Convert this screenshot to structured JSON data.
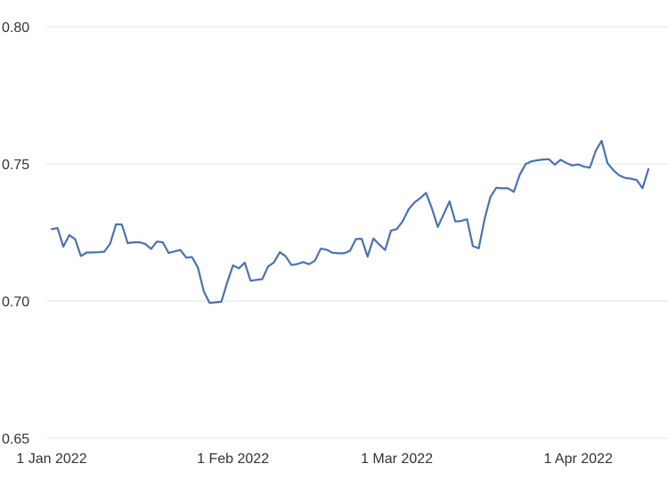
{
  "chart_data": {
    "type": "line",
    "title": "",
    "xlabel": "",
    "ylabel": "",
    "grid": "horizontal",
    "legend": "none",
    "xlim": [
      "2022-01-01",
      "2022-04-13"
    ],
    "ylim": [
      0.65,
      0.8
    ],
    "y_ticks": [
      {
        "value": 0.65,
        "label": "0.65"
      },
      {
        "value": 0.7,
        "label": "0.70"
      },
      {
        "value": 0.75,
        "label": "0.75"
      },
      {
        "value": 0.8,
        "label": "0.80"
      }
    ],
    "x_ticks": [
      {
        "value": "2022-01-01",
        "label": "1 Jan 2022"
      },
      {
        "value": "2022-02-01",
        "label": "1 Feb 2022"
      },
      {
        "value": "2022-03-01",
        "label": "1 Mar 2022"
      },
      {
        "value": "2022-04-01",
        "label": "1 Apr 2022"
      }
    ],
    "colors": {
      "line": "#4a72b0",
      "grid": "#e6e6e6",
      "text": "#333333"
    },
    "series": [
      {
        "x": [
          "2022-01-01",
          "2022-01-02",
          "2022-01-03",
          "2022-01-04",
          "2022-01-05",
          "2022-01-06",
          "2022-01-07",
          "2022-01-08",
          "2022-01-09",
          "2022-01-10",
          "2022-01-11",
          "2022-01-12",
          "2022-01-13",
          "2022-01-14",
          "2022-01-15",
          "2022-01-16",
          "2022-01-17",
          "2022-01-18",
          "2022-01-19",
          "2022-01-20",
          "2022-01-21",
          "2022-01-22",
          "2022-01-23",
          "2022-01-24",
          "2022-01-25",
          "2022-01-26",
          "2022-01-27",
          "2022-01-28",
          "2022-01-29",
          "2022-01-30",
          "2022-01-31",
          "2022-02-01",
          "2022-02-02",
          "2022-02-03",
          "2022-02-04",
          "2022-02-05",
          "2022-02-06",
          "2022-02-07",
          "2022-02-08",
          "2022-02-09",
          "2022-02-10",
          "2022-02-11",
          "2022-02-12",
          "2022-02-13",
          "2022-02-14",
          "2022-02-15",
          "2022-02-16",
          "2022-02-17",
          "2022-02-18",
          "2022-02-19",
          "2022-02-20",
          "2022-02-21",
          "2022-02-22",
          "2022-02-23",
          "2022-02-24",
          "2022-02-25",
          "2022-02-26",
          "2022-02-27",
          "2022-02-28",
          "2022-03-01",
          "2022-03-02",
          "2022-03-03",
          "2022-03-04",
          "2022-03-05",
          "2022-03-06",
          "2022-03-07",
          "2022-03-08",
          "2022-03-09",
          "2022-03-10",
          "2022-03-11",
          "2022-03-12",
          "2022-03-13",
          "2022-03-14",
          "2022-03-15",
          "2022-03-16",
          "2022-03-17",
          "2022-03-18",
          "2022-03-19",
          "2022-03-20",
          "2022-03-21",
          "2022-03-22",
          "2022-03-23",
          "2022-03-24",
          "2022-03-25",
          "2022-03-26",
          "2022-03-27",
          "2022-03-28",
          "2022-03-29",
          "2022-03-30",
          "2022-03-31",
          "2022-04-01",
          "2022-04-02",
          "2022-04-03",
          "2022-04-04",
          "2022-04-05",
          "2022-04-06",
          "2022-04-07",
          "2022-04-08",
          "2022-04-09",
          "2022-04-10",
          "2022-04-11",
          "2022-04-12",
          "2022-04-13"
        ],
        "values": [
          0.7262,
          0.7266,
          0.7198,
          0.724,
          0.7226,
          0.7164,
          0.7177,
          0.7177,
          0.7178,
          0.718,
          0.7209,
          0.728,
          0.7279,
          0.7211,
          0.7214,
          0.7214,
          0.7208,
          0.719,
          0.7217,
          0.7214,
          0.7175,
          0.7181,
          0.7186,
          0.7158,
          0.716,
          0.7122,
          0.7035,
          0.6993,
          0.6995,
          0.6997,
          0.7068,
          0.713,
          0.7119,
          0.714,
          0.7074,
          0.7077,
          0.708,
          0.7126,
          0.7141,
          0.7178,
          0.7163,
          0.7131,
          0.7135,
          0.7142,
          0.7134,
          0.7147,
          0.7191,
          0.7187,
          0.7176,
          0.7174,
          0.7174,
          0.7183,
          0.7226,
          0.7227,
          0.7162,
          0.7228,
          0.7206,
          0.7186,
          0.7257,
          0.7262,
          0.7291,
          0.7334,
          0.7359,
          0.7375,
          0.7394,
          0.7337,
          0.727,
          0.7316,
          0.7363,
          0.729,
          0.7292,
          0.7298,
          0.72,
          0.7192,
          0.7299,
          0.7379,
          0.7413,
          0.7411,
          0.7411,
          0.7398,
          0.746,
          0.7499,
          0.7509,
          0.7513,
          0.7516,
          0.7517,
          0.7497,
          0.7515,
          0.7503,
          0.7494,
          0.7498,
          0.749,
          0.7486,
          0.7548,
          0.7584,
          0.7503,
          0.7477,
          0.7458,
          0.7449,
          0.7446,
          0.7441,
          0.7411,
          0.7481
        ]
      }
    ]
  }
}
